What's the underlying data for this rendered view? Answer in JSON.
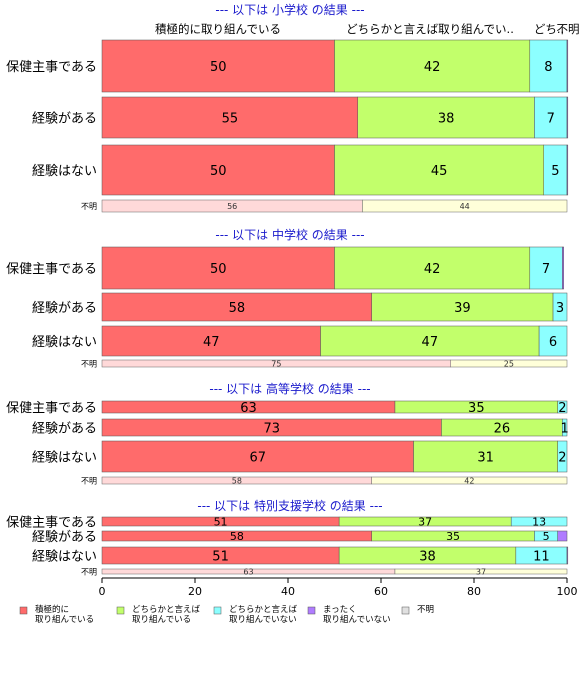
{
  "chart_data": {
    "type": "bar",
    "orientation": "horizontal",
    "stacked": true,
    "xlim": [
      0,
      100
    ],
    "x_ticks": [
      "0",
      "20",
      "40",
      "60",
      "80",
      "100"
    ],
    "column_headers": [
      "積極的に取り組んでいる",
      "どちらかと言えば取り組んでい..",
      "どち..",
      "不明"
    ],
    "legend": [
      {
        "label": "積極的に\n取り組んでいる",
        "color": "#ff6b6b"
      },
      {
        "label": "どちらかと言えば\n取り組んでいる",
        "color": "#c2ff6b"
      },
      {
        "label": "どちらかと言えば\n取り組んでいない",
        "color": "#8cffff"
      },
      {
        "label": "まったく\n取り組んでいない",
        "color": "#b07cff"
      },
      {
        "label": "不明",
        "color": "#e0e0e0"
      }
    ],
    "unknown_colors": [
      "#ffd9d9",
      "#ffffd9"
    ],
    "groups": [
      {
        "title": "--- 以下は 小学校 の結果 ---",
        "rows": [
          {
            "label": "保健主事である",
            "values": [
              50,
              42,
              8,
              0.3
            ]
          },
          {
            "label": "経験がある",
            "values": [
              55,
              38,
              7,
              0.3
            ]
          },
          {
            "label": "経験はない",
            "values": [
              50,
              45,
              5,
              0.5
            ]
          }
        ],
        "unknown": {
          "label": "不明",
          "values": [
            56,
            44
          ]
        }
      },
      {
        "title": "--- 以下は 中学校 の結果 ---",
        "rows": [
          {
            "label": "保健主事である",
            "values": [
              50,
              42,
              7,
              0.3
            ]
          },
          {
            "label": "経験がある",
            "values": [
              58,
              39,
              3,
              0
            ]
          },
          {
            "label": "経験はない",
            "values": [
              47,
              47,
              6,
              0
            ]
          }
        ],
        "unknown": {
          "label": "不明",
          "values": [
            75,
            25
          ]
        }
      },
      {
        "title": "--- 以下は 高等学校 の結果 ---",
        "rows": [
          {
            "label": "保健主事である",
            "values": [
              63,
              35,
              2,
              0
            ]
          },
          {
            "label": "経験がある",
            "values": [
              73,
              26,
              1,
              0
            ]
          },
          {
            "label": "経験はない",
            "values": [
              67,
              31,
              2,
              0
            ]
          }
        ],
        "unknown": {
          "label": "不明",
          "values": [
            58,
            42
          ]
        }
      },
      {
        "title": "--- 以下は 特別支援学校 の結果 ---",
        "rows": [
          {
            "label": "保健主事である",
            "values": [
              51,
              37,
              13,
              0
            ]
          },
          {
            "label": "経験がある",
            "values": [
              58,
              35,
              5,
              2
            ]
          },
          {
            "label": "経験はない",
            "values": [
              51,
              38,
              11,
              1
            ]
          }
        ],
        "unknown": {
          "label": "不明",
          "values": [
            63,
            37
          ]
        }
      }
    ]
  }
}
